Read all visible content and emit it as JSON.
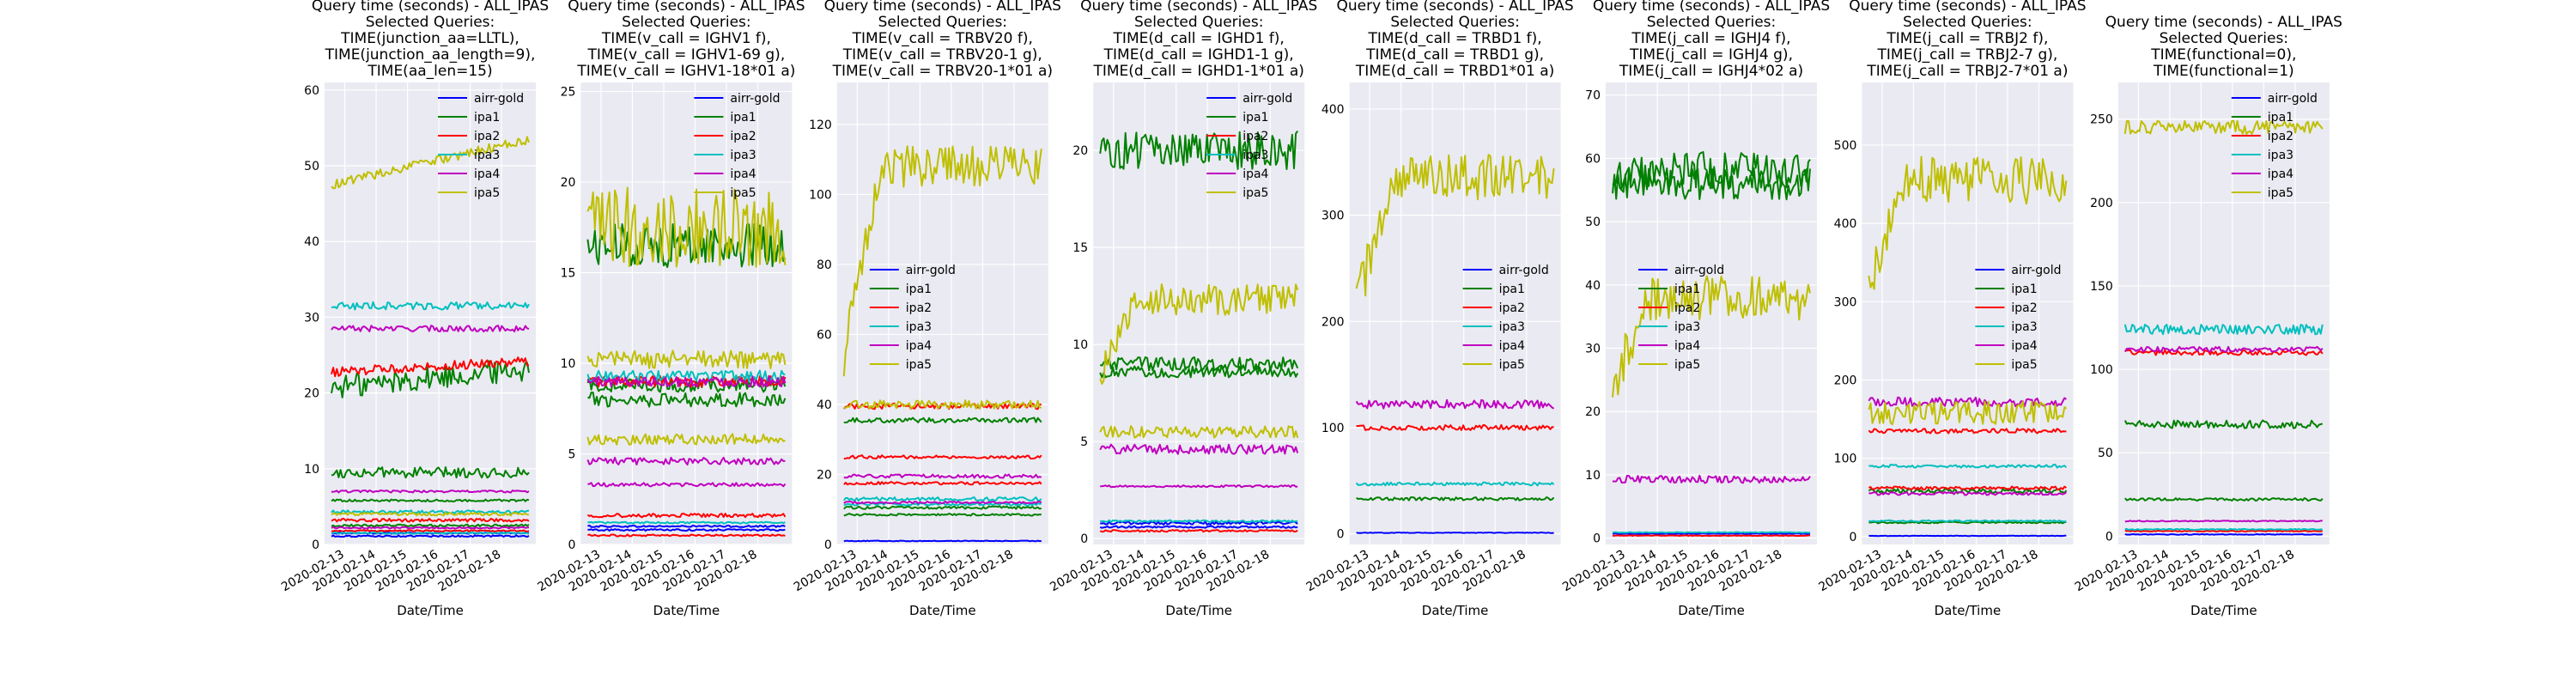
{
  "chart_data": [
    {
      "type": "line",
      "title": [
        "Query time (seconds) - ALL_IPAS",
        "Selected Queries:",
        "TIME(junction_aa=LLTL),",
        "TIME(junction_aa_length=9),",
        "TIME(aa_len=15)"
      ],
      "xlabel": "Date/Time",
      "ylabel": "",
      "x_ticks": [
        "2020-02-13",
        "2020-02-14",
        "2020-02-15",
        "2020-02-16",
        "2020-02-17",
        "2020-02-18"
      ],
      "ylim": [
        0,
        61
      ],
      "y_ticks": [
        0,
        10,
        20,
        30,
        40,
        50,
        60
      ],
      "legend_position": "upper-right",
      "series": [
        {
          "name": "airr-gold",
          "color": "#0000ff",
          "curves": [
            {
              "level": 1.5,
              "noise": 0.1
            },
            {
              "level": 1.1,
              "noise": 0.1
            }
          ]
        },
        {
          "name": "ipa1",
          "color": "#008000",
          "curves": [
            {
              "level": 22,
              "noise": 1.6,
              "trend": 2.5
            },
            {
              "level": 9.5,
              "noise": 0.7
            },
            {
              "level": 5.8,
              "noise": 0.15
            },
            {
              "level": 2.5,
              "noise": 0.15
            }
          ]
        },
        {
          "name": "ipa2",
          "color": "#ff0000",
          "curves": [
            {
              "level": 23.5,
              "noise": 0.6,
              "trend": 1.5
            },
            {
              "level": 3.2,
              "noise": 0.2
            },
            {
              "level": 1.8,
              "noise": 0.1
            }
          ]
        },
        {
          "name": "ipa3",
          "color": "#00bfbf",
          "curves": [
            {
              "level": 31.5,
              "noise": 0.5
            },
            {
              "level": 4.3,
              "noise": 0.2
            },
            {
              "level": 1.5,
              "noise": 0.1
            }
          ]
        },
        {
          "name": "ipa4",
          "color": "#bf00bf",
          "curves": [
            {
              "level": 28.5,
              "noise": 0.4
            },
            {
              "level": 7.0,
              "noise": 0.15
            },
            {
              "level": 2.2,
              "noise": 0.1
            }
          ]
        },
        {
          "name": "ipa5",
          "color": "#bfbf00",
          "curves": [
            {
              "level": 50.5,
              "noise": 0.6,
              "trend": 6
            },
            {
              "level": 4.0,
              "noise": 0.2
            }
          ]
        }
      ]
    },
    {
      "type": "line",
      "title": [
        "Query time (seconds) - ALL_IPAS",
        "Selected Queries:",
        "TIME(v_call = IGHV1 f),",
        "TIME(v_call = IGHV1-69 g),",
        "TIME(v_call = IGHV1-18*01 a)"
      ],
      "xlabel": "Date/Time",
      "ylabel": "",
      "x_ticks": [
        "2020-02-13",
        "2020-02-14",
        "2020-02-15",
        "2020-02-16",
        "2020-02-17",
        "2020-02-18"
      ],
      "ylim": [
        0,
        25.5
      ],
      "y_ticks": [
        0,
        5,
        10,
        15,
        20,
        25
      ],
      "legend_position": "upper-right",
      "series": [
        {
          "name": "airr-gold",
          "color": "#0000ff",
          "curves": [
            {
              "level": 1.0,
              "noise": 0.05
            },
            {
              "level": 0.8,
              "noise": 0.05
            }
          ]
        },
        {
          "name": "ipa1",
          "color": "#008000",
          "curves": [
            {
              "level": 16.5,
              "noise": 1.2
            },
            {
              "level": 8.8,
              "noise": 0.4
            },
            {
              "level": 8.0,
              "noise": 0.4
            }
          ]
        },
        {
          "name": "ipa2",
          "color": "#ff0000",
          "curves": [
            {
              "level": 9.0,
              "noise": 0.3
            },
            {
              "level": 1.6,
              "noise": 0.1
            },
            {
              "level": 0.5,
              "noise": 0.05
            }
          ]
        },
        {
          "name": "ipa3",
          "color": "#00bfbf",
          "curves": [
            {
              "level": 9.3,
              "noise": 0.3
            },
            {
              "level": 1.2,
              "noise": 0.05
            }
          ]
        },
        {
          "name": "ipa4",
          "color": "#bf00bf",
          "curves": [
            {
              "level": 9.0,
              "noise": 0.3
            },
            {
              "level": 4.6,
              "noise": 0.2
            },
            {
              "level": 3.3,
              "noise": 0.1
            }
          ]
        },
        {
          "name": "ipa5",
          "color": "#bfbf00",
          "curves": [
            {
              "level": 17.5,
              "noise": 2.2
            },
            {
              "level": 10.2,
              "noise": 0.5
            },
            {
              "level": 5.8,
              "noise": 0.3
            }
          ]
        }
      ]
    },
    {
      "type": "line",
      "title": [
        "Query time (seconds) - ALL_IPAS",
        "Selected Queries:",
        "TIME(v_call = TRBV20 f),",
        "TIME(v_call = TRBV20-1 g),",
        "TIME(v_call = TRBV20-1*01  a)"
      ],
      "xlabel": "Date/Time",
      "ylabel": "",
      "x_ticks": [
        "2020-02-13",
        "2020-02-14",
        "2020-02-15",
        "2020-02-16",
        "2020-02-17",
        "2020-02-18"
      ],
      "ylim": [
        0,
        132
      ],
      "y_ticks": [
        0,
        20,
        40,
        60,
        80,
        100,
        120
      ],
      "legend_position": "center-left",
      "series": [
        {
          "name": "airr-gold",
          "color": "#0000ff",
          "curves": [
            {
              "level": 1.0,
              "noise": 0.1
            }
          ]
        },
        {
          "name": "ipa1",
          "color": "#008000",
          "curves": [
            {
              "level": 35.5,
              "noise": 0.7
            },
            {
              "level": 10.5,
              "noise": 0.4
            },
            {
              "level": 8.5,
              "noise": 0.3
            }
          ]
        },
        {
          "name": "ipa2",
          "color": "#ff0000",
          "curves": [
            {
              "level": 39.5,
              "noise": 0.8
            },
            {
              "level": 25.0,
              "noise": 0.5
            },
            {
              "level": 17.5,
              "noise": 0.4
            }
          ]
        },
        {
          "name": "ipa3",
          "color": "#00bfbf",
          "curves": [
            {
              "level": 13.0,
              "noise": 0.5
            },
            {
              "level": 11.5,
              "noise": 0.4
            }
          ]
        },
        {
          "name": "ipa4",
          "color": "#bf00bf",
          "curves": [
            {
              "level": 19.5,
              "noise": 0.5
            },
            {
              "level": 12.0,
              "noise": 0.3
            }
          ]
        },
        {
          "name": "ipa5",
          "color": "#bfbf00",
          "curves": [
            {
              "level": 108,
              "noise": 6,
              "ramp": 55
            },
            {
              "level": 40,
              "noise": 1.2
            }
          ]
        }
      ]
    },
    {
      "type": "line",
      "title": [
        "Query time (seconds) - ALL_IPAS",
        "Selected Queries:",
        "TIME(d_call = IGHD1 f),",
        "TIME(d_call = IGHD1-1 g),",
        "TIME(d_call = IGHD1-1*01 a)"
      ],
      "xlabel": "Date/Time",
      "ylabel": "",
      "x_ticks": [
        "2020-02-13",
        "2020-02-14",
        "2020-02-15",
        "2020-02-16",
        "2020-02-17",
        "2020-02-18"
      ],
      "ylim": [
        -0.3,
        23.5
      ],
      "y_ticks": [
        0,
        5,
        10,
        15,
        20
      ],
      "legend_position": "upper-right",
      "series": [
        {
          "name": "airr-gold",
          "color": "#0000ff",
          "curves": [
            {
              "level": 0.8,
              "noise": 0.08
            },
            {
              "level": 0.6,
              "noise": 0.05
            }
          ]
        },
        {
          "name": "ipa1",
          "color": "#008000",
          "curves": [
            {
              "level": 20.0,
              "noise": 1.0
            },
            {
              "level": 9.0,
              "noise": 0.35
            },
            {
              "level": 8.6,
              "noise": 0.3
            }
          ]
        },
        {
          "name": "ipa2",
          "color": "#ff0000",
          "curves": [
            {
              "level": 0.4,
              "noise": 0.05
            }
          ]
        },
        {
          "name": "ipa3",
          "color": "#00bfbf",
          "curves": [
            {
              "level": 0.9,
              "noise": 0.05
            }
          ]
        },
        {
          "name": "ipa4",
          "color": "#bf00bf",
          "curves": [
            {
              "level": 4.6,
              "noise": 0.25
            },
            {
              "level": 2.7,
              "noise": 0.05
            }
          ]
        },
        {
          "name": "ipa5",
          "color": "#bfbf00",
          "curves": [
            {
              "level": 12.3,
              "noise": 0.8,
              "ramp": 4
            },
            {
              "level": 5.5,
              "noise": 0.3
            }
          ]
        }
      ]
    },
    {
      "type": "line",
      "title": [
        "Query time (seconds) - ALL_IPAS",
        "Selected Queries:",
        "TIME(d_call = TRBD1 f),",
        "TIME(d_call = TRBD1 g),",
        "TIME(d_call = TRBD1*01 a)"
      ],
      "xlabel": "Date/Time",
      "ylabel": "",
      "x_ticks": [
        "2020-02-13",
        "2020-02-14",
        "2020-02-15",
        "2020-02-16",
        "2020-02-17",
        "2020-02-18"
      ],
      "ylim": [
        -10,
        425
      ],
      "y_ticks": [
        0,
        100,
        200,
        300,
        400
      ],
      "legend_position": "center-right",
      "series": [
        {
          "name": "airr-gold",
          "color": "#0000ff",
          "curves": [
            {
              "level": 1.0,
              "noise": 0.3
            }
          ]
        },
        {
          "name": "ipa1",
          "color": "#008000",
          "curves": [
            {
              "level": 33,
              "noise": 1.5
            }
          ]
        },
        {
          "name": "ipa2",
          "color": "#ff0000",
          "curves": [
            {
              "level": 100,
              "noise": 2.5
            }
          ]
        },
        {
          "name": "ipa3",
          "color": "#00bfbf",
          "curves": [
            {
              "level": 47,
              "noise": 1.5
            }
          ]
        },
        {
          "name": "ipa4",
          "color": "#bf00bf",
          "curves": [
            {
              "level": 122,
              "noise": 4
            }
          ]
        },
        {
          "name": "ipa5",
          "color": "#bfbf00",
          "curves": [
            {
              "level": 335,
              "noise": 22,
              "ramp": 120
            }
          ]
        }
      ]
    },
    {
      "type": "line",
      "title": [
        "Query time (seconds) - ALL_IPAS",
        "Selected Queries:",
        "TIME(j_call = IGHJ4 f),",
        "TIME(j_call = IGHJ4 g),",
        "TIME(j_call = IGHJ4*02 a)"
      ],
      "xlabel": "Date/Time",
      "ylabel": "",
      "x_ticks": [
        "2020-02-13",
        "2020-02-14",
        "2020-02-15",
        "2020-02-16",
        "2020-02-17",
        "2020-02-18"
      ],
      "ylim": [
        -1,
        72
      ],
      "y_ticks": [
        0,
        10,
        20,
        30,
        40,
        50,
        60,
        70
      ],
      "legend_position": "center-left",
      "series": [
        {
          "name": "airr-gold",
          "color": "#0000ff",
          "curves": [
            {
              "level": 0.7,
              "noise": 0.05
            }
          ]
        },
        {
          "name": "ipa1",
          "color": "#008000",
          "curves": [
            {
              "level": 58,
              "noise": 3.2
            },
            {
              "level": 56,
              "noise": 2.5
            }
          ]
        },
        {
          "name": "ipa2",
          "color": "#ff0000",
          "curves": [
            {
              "level": 0.4,
              "noise": 0.05
            }
          ]
        },
        {
          "name": "ipa3",
          "color": "#00bfbf",
          "curves": [
            {
              "level": 0.9,
              "noise": 0.05
            }
          ]
        },
        {
          "name": "ipa4",
          "color": "#bf00bf",
          "curves": [
            {
              "level": 9.3,
              "noise": 0.6
            }
          ]
        },
        {
          "name": "ipa5",
          "color": "#bfbf00",
          "curves": [
            {
              "level": 38,
              "noise": 3.5,
              "ramp": 14
            }
          ]
        }
      ]
    },
    {
      "type": "line",
      "title": [
        "Query time (seconds) - ALL_IPAS",
        "Selected Queries:",
        "TIME(j_call = TRBJ2 f),",
        "TIME(j_call = TRBJ2-7 g),",
        "TIME(j_call = TRBJ2-7*01 a)"
      ],
      "xlabel": "Date/Time",
      "ylabel": "",
      "x_ticks": [
        "2020-02-13",
        "2020-02-14",
        "2020-02-15",
        "2020-02-16",
        "2020-02-17",
        "2020-02-18"
      ],
      "ylim": [
        -10,
        580
      ],
      "y_ticks": [
        0,
        100,
        200,
        300,
        400,
        500
      ],
      "legend_position": "center-right",
      "series": [
        {
          "name": "airr-gold",
          "color": "#0000ff",
          "curves": [
            {
              "level": 1.0,
              "noise": 0.3
            }
          ]
        },
        {
          "name": "ipa1",
          "color": "#008000",
          "curves": [
            {
              "level": 58,
              "noise": 3
            },
            {
              "level": 18,
              "noise": 1
            }
          ]
        },
        {
          "name": "ipa2",
          "color": "#ff0000",
          "curves": [
            {
              "level": 135,
              "noise": 3
            },
            {
              "level": 62,
              "noise": 2
            }
          ]
        },
        {
          "name": "ipa3",
          "color": "#00bfbf",
          "curves": [
            {
              "level": 90,
              "noise": 2
            },
            {
              "level": 20,
              "noise": 1
            }
          ]
        },
        {
          "name": "ipa4",
          "color": "#bf00bf",
          "curves": [
            {
              "level": 172,
              "noise": 6
            },
            {
              "level": 55,
              "noise": 2
            }
          ]
        },
        {
          "name": "ipa5",
          "color": "#bfbf00",
          "curves": [
            {
              "level": 455,
              "noise": 30,
              "ramp": 130
            },
            {
              "level": 158,
              "noise": 15
            }
          ]
        }
      ]
    },
    {
      "type": "line",
      "title": [
        "Query time (seconds) - ALL_IPAS",
        "Selected Queries:",
        "TIME(functional=0),",
        "TIME(functional=1)"
      ],
      "xlabel": "Date/Time",
      "ylabel": "",
      "x_ticks": [
        "2020-02-13",
        "2020-02-14",
        "2020-02-15",
        "2020-02-16",
        "2020-02-17",
        "2020-02-18"
      ],
      "ylim": [
        -5,
        272
      ],
      "y_ticks": [
        0,
        50,
        100,
        150,
        200,
        250
      ],
      "legend_position": "upper-right",
      "series": [
        {
          "name": "airr-gold",
          "color": "#0000ff",
          "curves": [
            {
              "level": 1.0,
              "noise": 0.2
            }
          ]
        },
        {
          "name": "ipa1",
          "color": "#008000",
          "curves": [
            {
              "level": 67,
              "noise": 2.5
            },
            {
              "level": 22,
              "noise": 0.8
            }
          ]
        },
        {
          "name": "ipa2",
          "color": "#ff0000",
          "curves": [
            {
              "level": 110,
              "noise": 1.5
            },
            {
              "level": 3,
              "noise": 0.3
            }
          ]
        },
        {
          "name": "ipa3",
          "color": "#00bfbf",
          "curves": [
            {
              "level": 124,
              "noise": 3
            },
            {
              "level": 4,
              "noise": 0.3
            }
          ]
        },
        {
          "name": "ipa4",
          "color": "#bf00bf",
          "curves": [
            {
              "level": 112,
              "noise": 1.5
            },
            {
              "level": 9,
              "noise": 0.3
            }
          ]
        },
        {
          "name": "ipa5",
          "color": "#bfbf00",
          "curves": [
            {
              "level": 245,
              "noise": 4
            }
          ]
        }
      ]
    }
  ]
}
